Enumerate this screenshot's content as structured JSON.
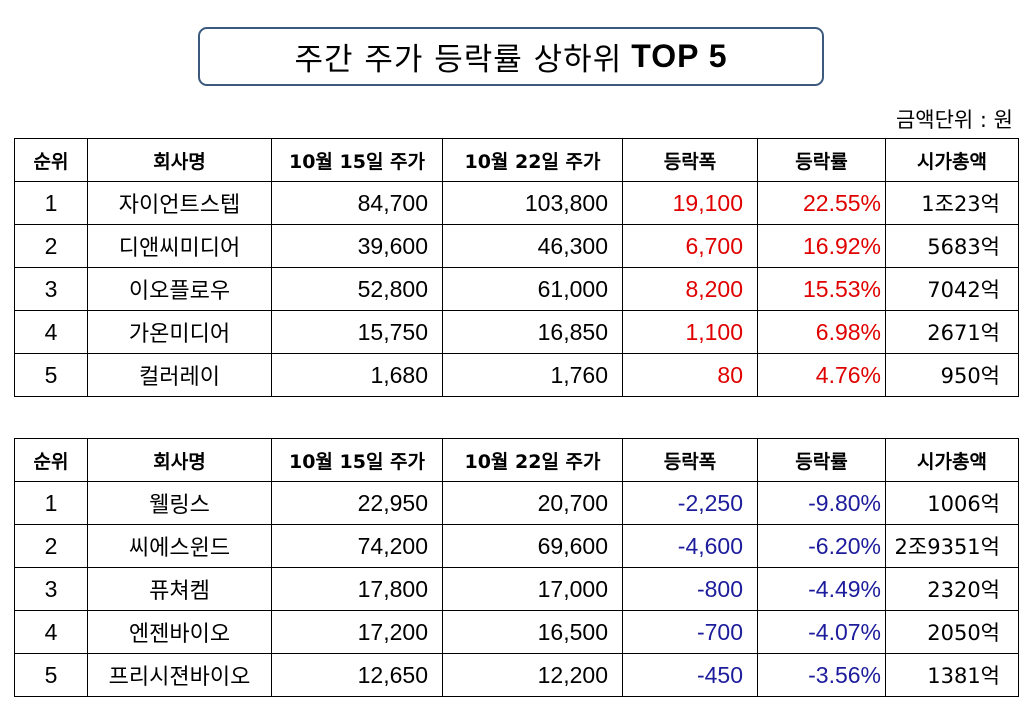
{
  "title": {
    "korean": "주간 주가 등락률 상하위",
    "english": "TOP 5"
  },
  "unit_note": "금액단위 : 원",
  "headers": {
    "rank": "순위",
    "company": "회사명",
    "price_oct15": "10월 15일 주가",
    "price_oct22": "10월 22일 주가",
    "change": "등락폭",
    "change_rate": "등락률",
    "market_cap": "시가총액"
  },
  "colors": {
    "up": "#e00000",
    "down": "#1c1c9c",
    "title_border": "#3b5a7e"
  },
  "gainers": [
    {
      "rank": "1",
      "company": "자이언트스텝",
      "price_oct15": "84,700",
      "price_oct22": "103,800",
      "change": "19,100",
      "change_rate": "22.55%",
      "market_cap": "1조23억"
    },
    {
      "rank": "2",
      "company": "디앤씨미디어",
      "price_oct15": "39,600",
      "price_oct22": "46,300",
      "change": "6,700",
      "change_rate": "16.92%",
      "market_cap": "5683억"
    },
    {
      "rank": "3",
      "company": "이오플로우",
      "price_oct15": "52,800",
      "price_oct22": "61,000",
      "change": "8,200",
      "change_rate": "15.53%",
      "market_cap": "7042억"
    },
    {
      "rank": "4",
      "company": "가온미디어",
      "price_oct15": "15,750",
      "price_oct22": "16,850",
      "change": "1,100",
      "change_rate": "6.98%",
      "market_cap": "2671억"
    },
    {
      "rank": "5",
      "company": "컬러레이",
      "price_oct15": "1,680",
      "price_oct22": "1,760",
      "change": "80",
      "change_rate": "4.76%",
      "market_cap": "950억"
    }
  ],
  "losers": [
    {
      "rank": "1",
      "company": "웰링스",
      "price_oct15": "22,950",
      "price_oct22": "20,700",
      "change": "-2,250",
      "change_rate": "-9.80%",
      "market_cap": "1006억"
    },
    {
      "rank": "2",
      "company": "씨에스윈드",
      "price_oct15": "74,200",
      "price_oct22": "69,600",
      "change": "-4,600",
      "change_rate": "-6.20%",
      "market_cap": "2조9351억"
    },
    {
      "rank": "3",
      "company": "퓨쳐켐",
      "price_oct15": "17,800",
      "price_oct22": "17,000",
      "change": "-800",
      "change_rate": "-4.49%",
      "market_cap": "2320억"
    },
    {
      "rank": "4",
      "company": "엔젠바이오",
      "price_oct15": "17,200",
      "price_oct22": "16,500",
      "change": "-700",
      "change_rate": "-4.07%",
      "market_cap": "2050억"
    },
    {
      "rank": "5",
      "company": "프리시젼바이오",
      "price_oct15": "12,650",
      "price_oct22": "12,200",
      "change": "-450",
      "change_rate": "-3.56%",
      "market_cap": "1381억"
    }
  ]
}
